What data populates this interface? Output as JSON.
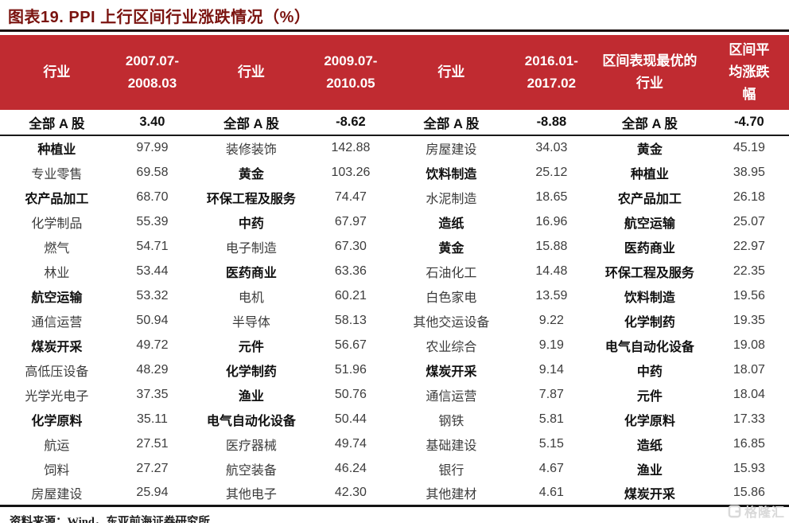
{
  "title": "图表19. PPI 上行区间行业涨跌情况（%）",
  "colors": {
    "header_bg": "#C02B31",
    "title_text": "#7A130F",
    "body_text": "#3C3C3C",
    "bold_text": "#101010",
    "watermark": "#D9D9D9"
  },
  "table": {
    "headers": [
      "行业",
      "2007.07-\n2008.03",
      "行业",
      "2009.07-\n2010.05",
      "行业",
      "2016.01-\n2017.02",
      "区间表现最优的\n行业",
      "区间平\n均涨跌\n幅"
    ],
    "summary_row": {
      "cells": [
        {
          "t": "全部 A 股"
        },
        {
          "t": "3.40"
        },
        {
          "t": "全部 A 股"
        },
        {
          "t": "-8.62"
        },
        {
          "t": "全部 A 股"
        },
        {
          "t": "-8.88"
        },
        {
          "t": "全部 A 股"
        },
        {
          "t": "-4.70"
        }
      ]
    },
    "rows": [
      {
        "cells": [
          {
            "t": "种植业",
            "b": true
          },
          {
            "t": "97.99"
          },
          {
            "t": "装修装饰"
          },
          {
            "t": "142.88"
          },
          {
            "t": "房屋建设"
          },
          {
            "t": "34.03"
          },
          {
            "t": "黄金",
            "b": true
          },
          {
            "t": "45.19"
          }
        ]
      },
      {
        "cells": [
          {
            "t": "专业零售"
          },
          {
            "t": "69.58"
          },
          {
            "t": "黄金",
            "b": true
          },
          {
            "t": "103.26"
          },
          {
            "t": "饮料制造",
            "b": true
          },
          {
            "t": "25.12"
          },
          {
            "t": "种植业",
            "b": true
          },
          {
            "t": "38.95"
          }
        ]
      },
      {
        "cells": [
          {
            "t": "农产品加工",
            "b": true
          },
          {
            "t": "68.70"
          },
          {
            "t": "环保工程及服务",
            "b": true
          },
          {
            "t": "74.47"
          },
          {
            "t": "水泥制造"
          },
          {
            "t": "18.65"
          },
          {
            "t": "农产品加工",
            "b": true
          },
          {
            "t": "26.18"
          }
        ]
      },
      {
        "cells": [
          {
            "t": "化学制品"
          },
          {
            "t": "55.39"
          },
          {
            "t": "中药",
            "b": true
          },
          {
            "t": "67.97"
          },
          {
            "t": "造纸",
            "b": true
          },
          {
            "t": "16.96"
          },
          {
            "t": "航空运输",
            "b": true
          },
          {
            "t": "25.07"
          }
        ]
      },
      {
        "cells": [
          {
            "t": "燃气"
          },
          {
            "t": "54.71"
          },
          {
            "t": "电子制造"
          },
          {
            "t": "67.30"
          },
          {
            "t": "黄金",
            "b": true
          },
          {
            "t": "15.88"
          },
          {
            "t": "医药商业",
            "b": true
          },
          {
            "t": "22.97"
          }
        ]
      },
      {
        "cells": [
          {
            "t": "林业"
          },
          {
            "t": "53.44"
          },
          {
            "t": "医药商业",
            "b": true
          },
          {
            "t": "63.36"
          },
          {
            "t": "石油化工"
          },
          {
            "t": "14.48"
          },
          {
            "t": "环保工程及服务",
            "b": true
          },
          {
            "t": "22.35"
          }
        ]
      },
      {
        "cells": [
          {
            "t": "航空运输",
            "b": true
          },
          {
            "t": "53.32"
          },
          {
            "t": "电机"
          },
          {
            "t": "60.21"
          },
          {
            "t": "白色家电"
          },
          {
            "t": "13.59"
          },
          {
            "t": "饮料制造",
            "b": true
          },
          {
            "t": "19.56"
          }
        ]
      },
      {
        "cells": [
          {
            "t": "通信运营"
          },
          {
            "t": "50.94"
          },
          {
            "t": "半导体"
          },
          {
            "t": "58.13"
          },
          {
            "t": "其他交运设备"
          },
          {
            "t": "9.22"
          },
          {
            "t": "化学制药",
            "b": true
          },
          {
            "t": "19.35"
          }
        ]
      },
      {
        "cells": [
          {
            "t": "煤炭开采",
            "b": true
          },
          {
            "t": "49.72"
          },
          {
            "t": "元件",
            "b": true
          },
          {
            "t": "56.67"
          },
          {
            "t": "农业综合"
          },
          {
            "t": "9.19"
          },
          {
            "t": "电气自动化设备",
            "b": true
          },
          {
            "t": "19.08"
          }
        ]
      },
      {
        "cells": [
          {
            "t": "高低压设备"
          },
          {
            "t": "48.29"
          },
          {
            "t": "化学制药",
            "b": true
          },
          {
            "t": "51.96"
          },
          {
            "t": "煤炭开采",
            "b": true
          },
          {
            "t": "9.14"
          },
          {
            "t": "中药",
            "b": true
          },
          {
            "t": "18.07"
          }
        ]
      },
      {
        "cells": [
          {
            "t": "光学光电子"
          },
          {
            "t": "37.35"
          },
          {
            "t": "渔业",
            "b": true
          },
          {
            "t": "50.76"
          },
          {
            "t": "通信运营"
          },
          {
            "t": "7.87"
          },
          {
            "t": "元件",
            "b": true
          },
          {
            "t": "18.04"
          }
        ]
      },
      {
        "cells": [
          {
            "t": "化学原料",
            "b": true
          },
          {
            "t": "35.11"
          },
          {
            "t": "电气自动化设备",
            "b": true
          },
          {
            "t": "50.44"
          },
          {
            "t": "钢铁"
          },
          {
            "t": "5.81"
          },
          {
            "t": "化学原料",
            "b": true
          },
          {
            "t": "17.33"
          }
        ]
      },
      {
        "cells": [
          {
            "t": "航运"
          },
          {
            "t": "27.51"
          },
          {
            "t": "医疗器械"
          },
          {
            "t": "49.74"
          },
          {
            "t": "基础建设"
          },
          {
            "t": "5.15"
          },
          {
            "t": "造纸",
            "b": true
          },
          {
            "t": "16.85"
          }
        ]
      },
      {
        "cells": [
          {
            "t": "饲料"
          },
          {
            "t": "27.27"
          },
          {
            "t": "航空装备"
          },
          {
            "t": "46.24"
          },
          {
            "t": "银行"
          },
          {
            "t": "4.67"
          },
          {
            "t": "渔业",
            "b": true
          },
          {
            "t": "15.93"
          }
        ]
      },
      {
        "cells": [
          {
            "t": "房屋建设"
          },
          {
            "t": "25.94"
          },
          {
            "t": "其他电子"
          },
          {
            "t": "42.30"
          },
          {
            "t": "其他建材"
          },
          {
            "t": "4.61"
          },
          {
            "t": "煤炭开采",
            "b": true
          },
          {
            "t": "15.86"
          }
        ]
      }
    ]
  },
  "footer": {
    "source": "资料来源：Wind，东亚前海证券研究所"
  },
  "watermark": {
    "text": "格隆汇"
  }
}
